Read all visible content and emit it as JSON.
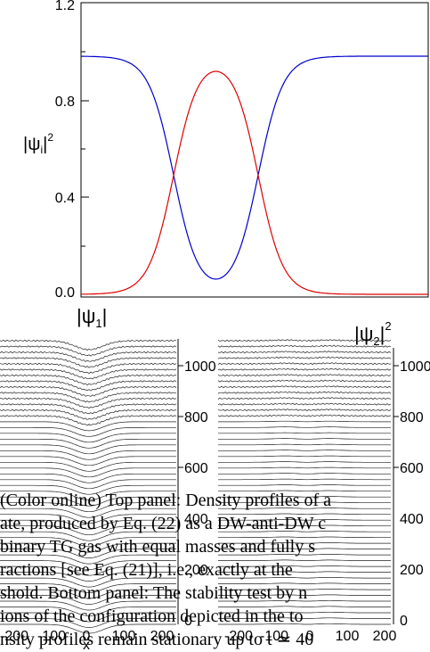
{
  "top_panel": {
    "ylabel_main": "|ψ",
    "ylabel_sub": "i",
    "ylabel_sup": "2",
    "y_ticks": [
      "1.2",
      "0.8",
      "0.4",
      "0.0"
    ],
    "colors": {
      "psi1": "#0000cc",
      "psi2": "#dd0000"
    }
  },
  "bottom_panels": {
    "left_title_main": "|ψ",
    "left_title_sub": "1",
    "right_title_main": "|ψ",
    "right_title_sub": "2",
    "right_title_sup": "2",
    "left_t_ticks": [
      "1000",
      "800",
      "600",
      "400",
      "200",
      "0"
    ],
    "right_t_ticks": [
      "1000",
      "800",
      "600",
      "400",
      "200",
      "0"
    ],
    "x_ticks_left": [
      "-200",
      "-100",
      "0",
      "100",
      "200"
    ],
    "x_ticks_right": [
      "-200",
      "-100",
      "0",
      "100",
      "200"
    ],
    "x_label": "x"
  },
  "chart_data": [
    {
      "type": "line",
      "title": "",
      "xlabel": "",
      "ylabel": "|ψi|^2",
      "ylim": [
        0,
        1.2
      ],
      "y_ticks": [
        0.0,
        0.4,
        0.8,
        1.2
      ],
      "series": [
        {
          "color": "#0000cc",
          "plateau": 0.98,
          "dip_min": 0.0
        },
        {
          "color": "#dd0000",
          "plateau": 0.98,
          "bump_min": 0.0
        }
      ]
    },
    {
      "type": "line",
      "title": "|ψ1|",
      "xlabel": "x",
      "x_ticks": [
        -200,
        -100,
        0,
        100,
        200
      ],
      "t_ticks": [
        0,
        200,
        400,
        600,
        800,
        1000
      ]
    },
    {
      "type": "line",
      "title": "|ψ2|^2",
      "xlabel": "x",
      "x_ticks": [
        -200,
        -100,
        0,
        100,
        200
      ],
      "t_ticks": [
        0,
        200,
        400,
        600,
        800,
        1000
      ]
    }
  ],
  "caption": {
    "lines": [
      "(Color online) Top panel: Density profiles of a",
      "ate, produced by Eq. (22) as a DW-anti-DW c",
      "binary TG gas with equal masses and fully s",
      "ractions [see Eq. (21)], i.e., exactly at the",
      "shold. Bottom panel: The stability test by n",
      "ions of the configuration depicted in the to",
      "nsity profiles remain stationary up to t ≃ 40"
    ]
  }
}
